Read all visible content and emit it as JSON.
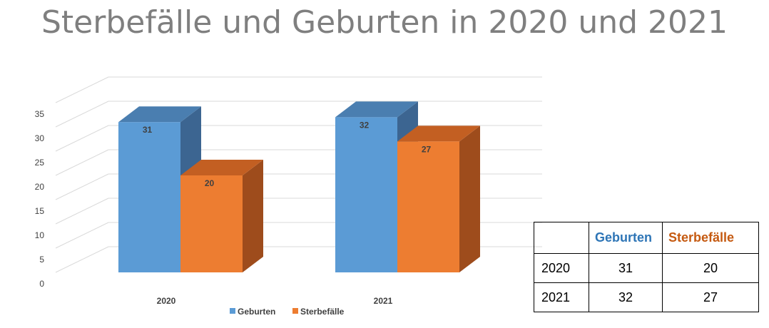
{
  "colors": {
    "geburten": "#5b9bd5",
    "geburten_top": "#4a7eb0",
    "geburten_side": "#3c6591",
    "sterbefaelle": "#ed7d31",
    "sterbefaelle_top": "#c35f22",
    "sterbefaelle_side": "#9e4c1c",
    "gridline": "#d9d9d9",
    "title": "#7f7f7f",
    "table_geburten": "#2e75b6",
    "table_sterbefaelle": "#c55a11"
  },
  "chart_data": {
    "type": "bar",
    "title": "Sterbefälle und Geburten in 2020 und 2021",
    "categories": [
      "2020",
      "2021"
    ],
    "series": [
      {
        "name": "Geburten",
        "values": [
          31,
          32
        ]
      },
      {
        "name": "Sterbefälle",
        "values": [
          20,
          27
        ]
      }
    ],
    "ylim": [
      0,
      35
    ],
    "yticks": [
      "0",
      "5",
      "10",
      "15",
      "20",
      "25",
      "30",
      "35"
    ],
    "grid": true,
    "legend": "bottom",
    "style": "3d-clustered-column"
  },
  "table": {
    "headers": [
      "",
      "Geburten",
      "Sterbefälle"
    ],
    "rows": [
      [
        "2020",
        "31",
        "20"
      ],
      [
        "2021",
        "32",
        "27"
      ]
    ]
  }
}
